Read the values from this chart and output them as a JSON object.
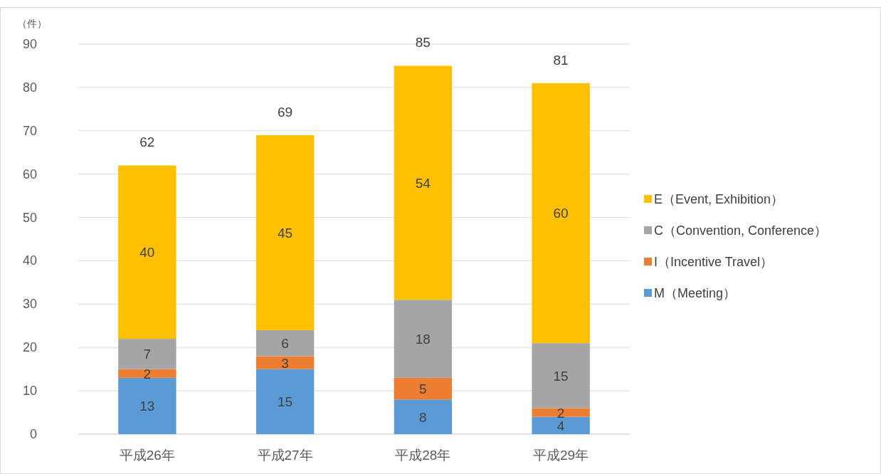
{
  "chart_data": {
    "type": "bar",
    "ylabel": "（件）",
    "categories": [
      "平成26年",
      "平成27年",
      "平成28年",
      "平成29年"
    ],
    "stacked": true,
    "ylim": [
      0,
      90
    ],
    "yticks": [
      0,
      10,
      20,
      30,
      40,
      50,
      60,
      70,
      80,
      90
    ],
    "grid": "y",
    "legend": "right",
    "data_labels": true,
    "totals": [
      "62",
      "69",
      "85",
      "81"
    ],
    "series": [
      {
        "name": "M（Meeting）",
        "color": "#5b9bd5",
        "values": [
          13,
          15,
          8,
          4
        ]
      },
      {
        "name": "I（Incentive Travel）",
        "color": "#ed7d31",
        "values": [
          2,
          3,
          5,
          2
        ]
      },
      {
        "name": "C（Convention, Conference）",
        "color": "#a5a5a5",
        "values": [
          7,
          6,
          18,
          15
        ]
      },
      {
        "name": "E（Event, Exhibition）",
        "color": "#ffc000",
        "values": [
          40,
          45,
          54,
          60
        ]
      }
    ]
  }
}
